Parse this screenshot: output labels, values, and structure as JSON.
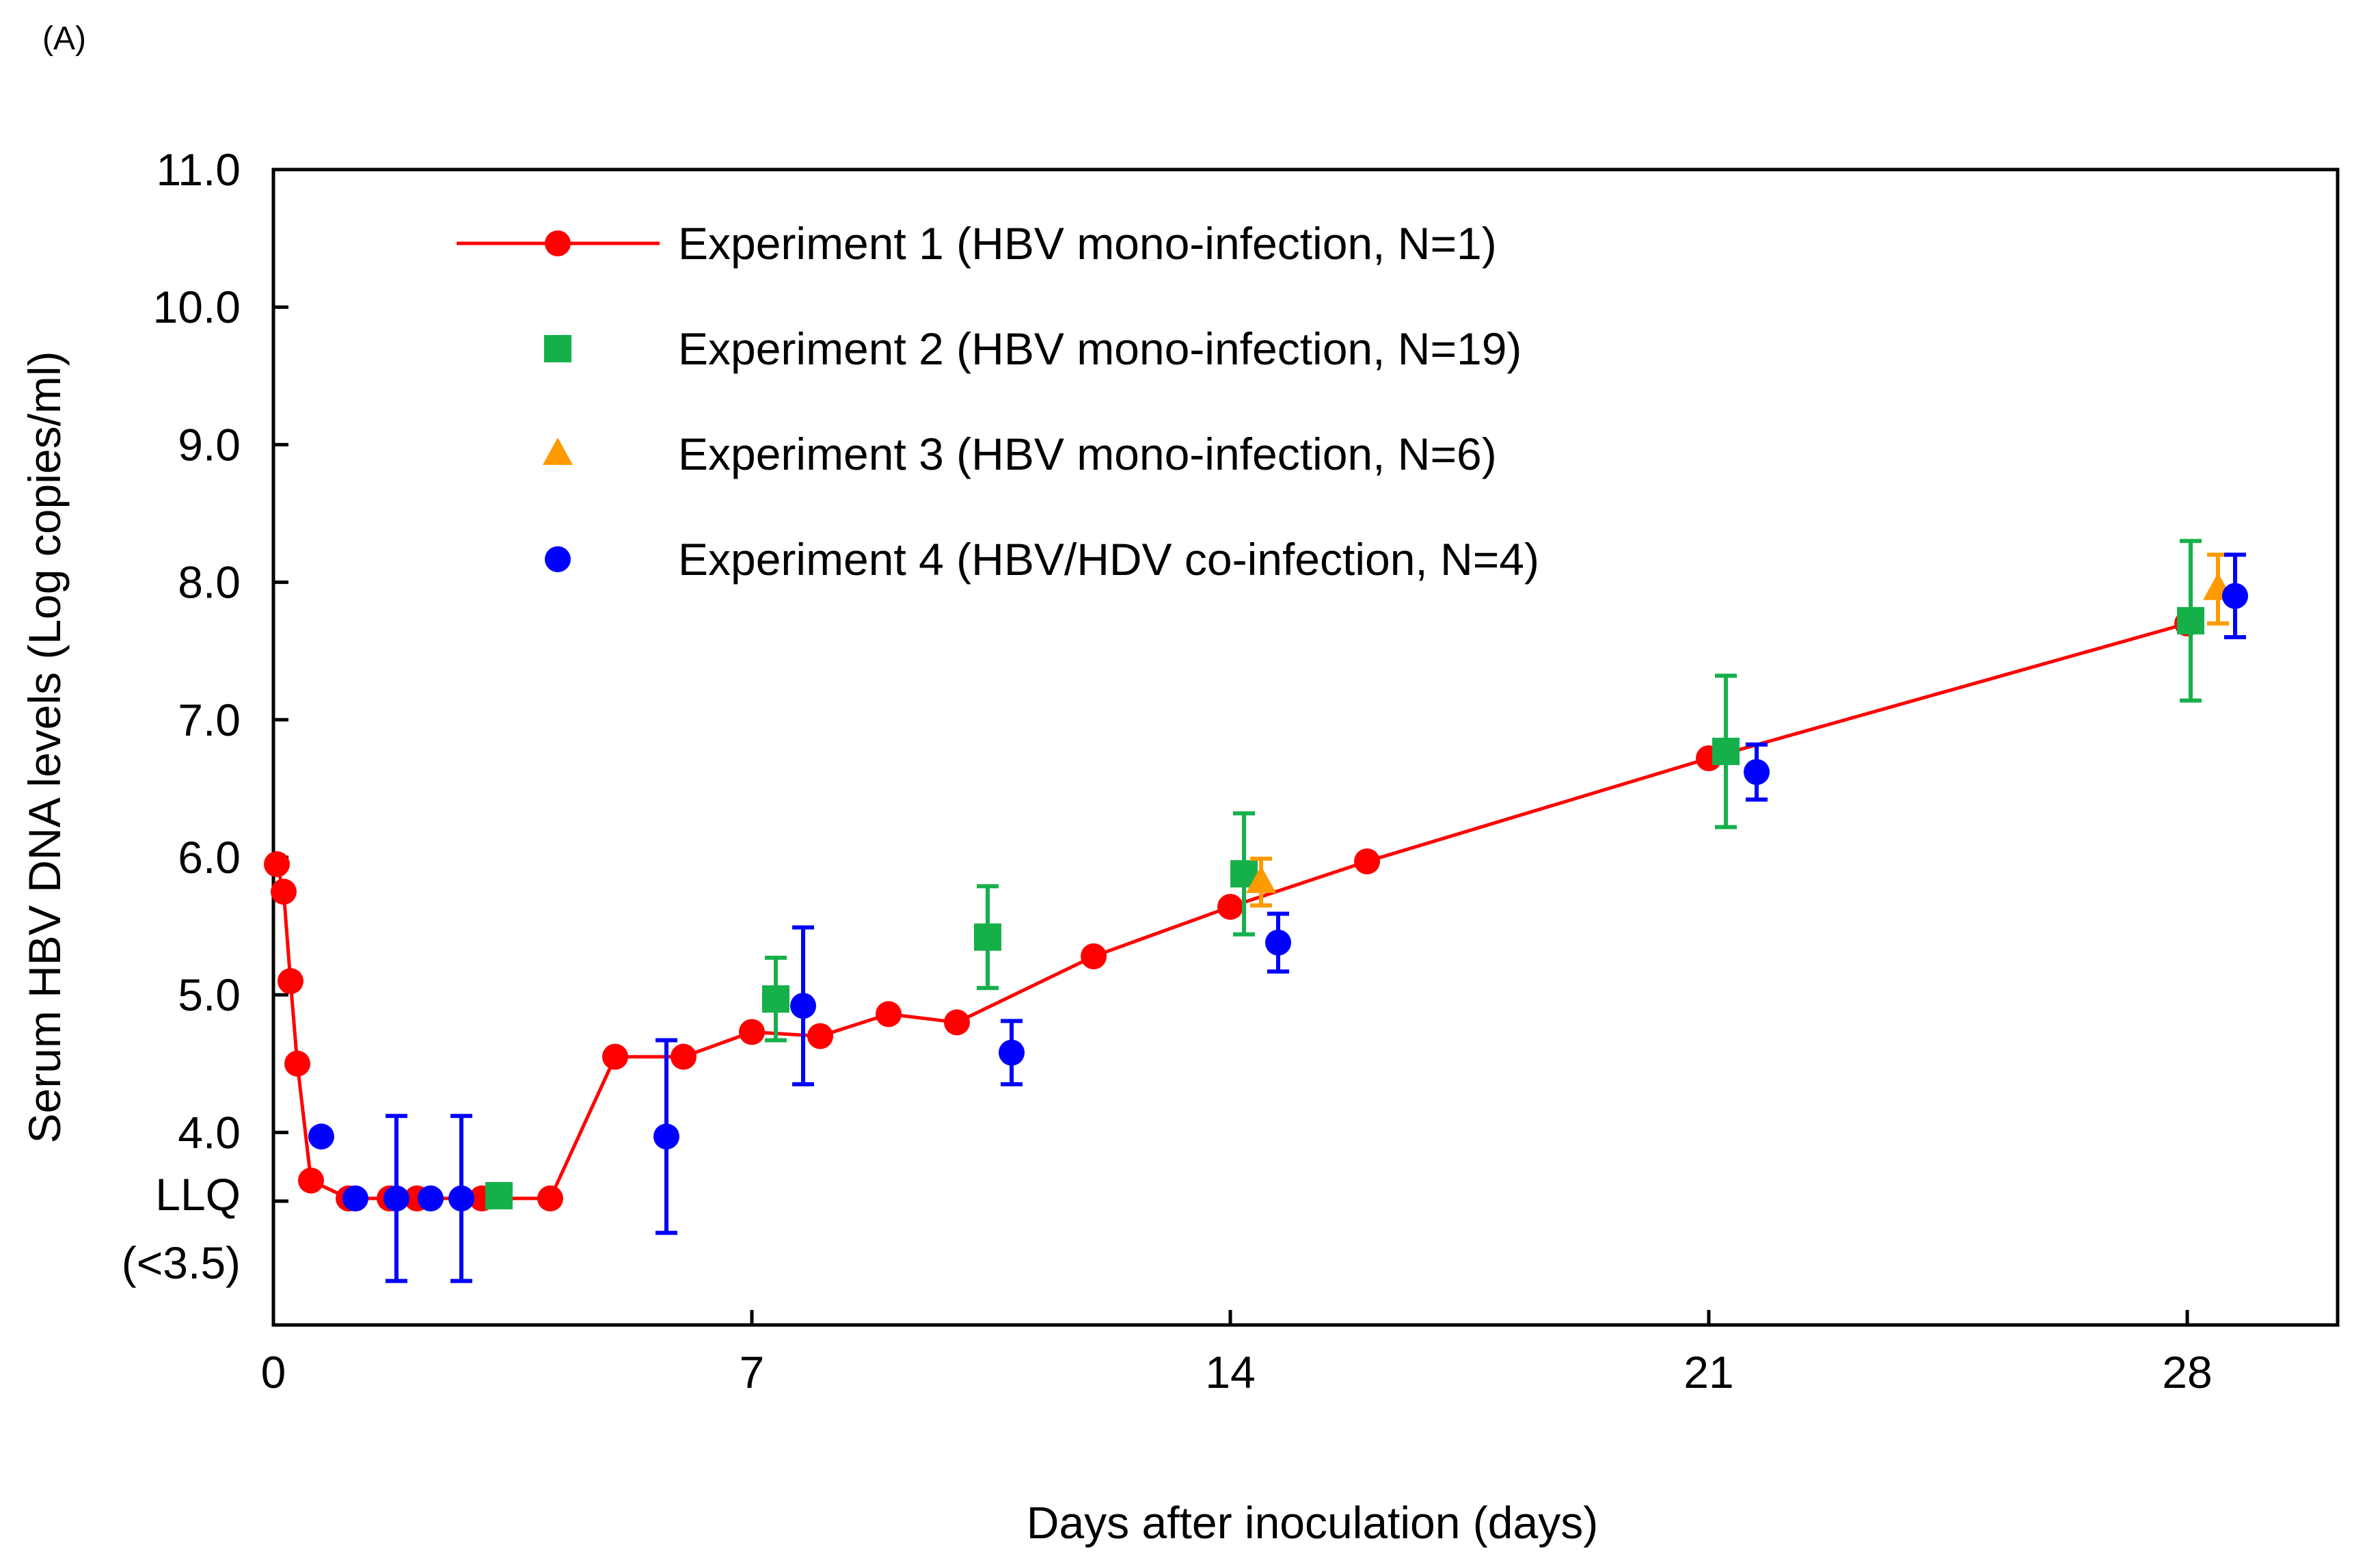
{
  "panel_label": "(A)",
  "chart_data": {
    "type": "scatter",
    "title": "",
    "xlabel": "Days after inoculation (days)",
    "ylabel": "Serum HBV DNA levels (Log copies/ml)",
    "xlim": [
      0,
      30.2
    ],
    "ylim": [
      2.6,
      11.0
    ],
    "x_ticks": [
      0,
      7,
      14,
      21,
      28
    ],
    "x_tick_labels": [
      "0",
      "7",
      "14",
      "21",
      "28"
    ],
    "y_ticks": [
      4.0,
      5.0,
      6.0,
      7.0,
      8.0,
      9.0,
      10.0,
      11.0
    ],
    "y_tick_labels": [
      "4.0",
      "5.0",
      "6.0",
      "7.0",
      "8.0",
      "9.0",
      "10.0",
      "11.0"
    ],
    "llq": {
      "value": 3.5,
      "label": "LLQ",
      "sublabel": "(<3.5)"
    },
    "colors": {
      "exp1": "#ff0000",
      "exp2": "#16b04a",
      "exp3": "#ff9a00",
      "exp4": "#0000ff"
    },
    "legend_position": "top-left",
    "series": [
      {
        "name": "Experiment 1 (HBV mono-infection, N=1)",
        "marker": "circle",
        "line": true,
        "color_key": "exp1",
        "points": [
          {
            "x": 0.05,
            "y": 5.95
          },
          {
            "x": 0.15,
            "y": 5.75
          },
          {
            "x": 0.25,
            "y": 5.1
          },
          {
            "x": 0.35,
            "y": 4.5
          },
          {
            "x": 0.55,
            "y": 3.65
          },
          {
            "x": 1.1,
            "y": 3.52
          },
          {
            "x": 1.7,
            "y": 3.52
          },
          {
            "x": 2.1,
            "y": 3.52
          },
          {
            "x": 3.05,
            "y": 3.52
          },
          {
            "x": 4.05,
            "y": 3.52
          },
          {
            "x": 5.0,
            "y": 4.55
          },
          {
            "x": 6.0,
            "y": 4.55
          },
          {
            "x": 7.0,
            "y": 4.73
          },
          {
            "x": 8.0,
            "y": 4.7
          },
          {
            "x": 9.0,
            "y": 4.86
          },
          {
            "x": 10.0,
            "y": 4.8
          },
          {
            "x": 12.0,
            "y": 5.28
          },
          {
            "x": 14.0,
            "y": 5.64
          },
          {
            "x": 16.0,
            "y": 5.97
          },
          {
            "x": 21.0,
            "y": 6.72
          },
          {
            "x": 28.0,
            "y": 7.7
          }
        ]
      },
      {
        "name": "Experiment 2 (HBV mono-infection, N=19)",
        "marker": "square",
        "line": false,
        "color_key": "exp2",
        "points": [
          {
            "x": 3.3,
            "y": 3.54,
            "err": 0
          },
          {
            "x": 7.35,
            "y": 4.97,
            "err": 0.3
          },
          {
            "x": 10.45,
            "y": 5.42,
            "err": 0.37
          },
          {
            "x": 14.2,
            "y": 5.88,
            "err": 0.44
          },
          {
            "x": 21.25,
            "y": 6.77,
            "err": 0.55
          },
          {
            "x": 28.05,
            "y": 7.72,
            "err": 0.58
          }
        ]
      },
      {
        "name": "Experiment 3 (HBV mono-infection, N=6)",
        "marker": "triangle",
        "line": false,
        "color_key": "exp3",
        "points": [
          {
            "x": 14.45,
            "y": 5.82,
            "err": 0.17
          },
          {
            "x": 28.45,
            "y": 7.95,
            "err": 0.25
          }
        ]
      },
      {
        "name": "Experiment 4 (HBV/HDV co-infection, N=4)",
        "marker": "circle",
        "line": false,
        "color_key": "exp4",
        "points": [
          {
            "x": 0.7,
            "y": 3.97,
            "err": 0
          },
          {
            "x": 1.2,
            "y": 3.52,
            "err": 0
          },
          {
            "x": 1.8,
            "y": 3.52,
            "err": 0.6
          },
          {
            "x": 2.3,
            "y": 3.52,
            "err": 0
          },
          {
            "x": 2.75,
            "y": 3.52,
            "err": 0.6
          },
          {
            "x": 5.75,
            "y": 3.97,
            "err": 0.7
          },
          {
            "x": 7.75,
            "y": 4.92,
            "err": 0.57
          },
          {
            "x": 10.8,
            "y": 4.58,
            "err": 0.23
          },
          {
            "x": 14.7,
            "y": 5.38,
            "err": 0.21
          },
          {
            "x": 21.7,
            "y": 6.62,
            "err": 0.2
          },
          {
            "x": 28.7,
            "y": 7.9,
            "err": 0.3
          }
        ]
      }
    ]
  }
}
